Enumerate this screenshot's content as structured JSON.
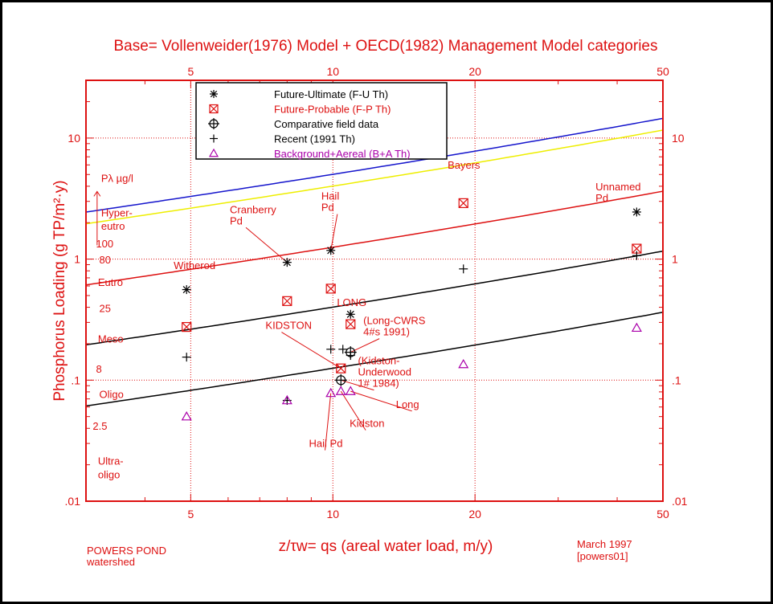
{
  "chart_data": {
    "type": "scatter",
    "title": "Base= Vollenweider(1976) Model + OECD(1982) Management Model categories",
    "ylabel": "Phosphorus Loading (g TP/m²·y)",
    "xlabel": "z/τw= qs (areal water load, m/y)",
    "x_scale": "log",
    "y_scale": "log",
    "xlim": [
      3,
      50
    ],
    "ylim": [
      0.01,
      30
    ],
    "x_ticks_top": [
      "5",
      "10",
      "20",
      "50"
    ],
    "x_ticks_bottom": [
      "5",
      "10",
      "20",
      "50"
    ],
    "y_ticks_left": [
      ".01",
      ".1",
      "1",
      "10"
    ],
    "y_ticks_right": [
      ".01",
      ".1",
      "1",
      "10"
    ],
    "grid": "dotted",
    "legend_position": "top-center",
    "footer_left": [
      "POWERS POND",
      "watershed"
    ],
    "footer_right": [
      "March 1997",
      "[powers01]"
    ],
    "colors": {
      "axes": "#dd1111",
      "text_black": "#000000",
      "text_red": "#dd1111",
      "text_magenta": "#aa00aa",
      "curve_100": "#1515cc",
      "curve_80": "#eeee00",
      "curve_25": "#dd1111",
      "curve_8": "#000000",
      "curve_2_5": "#000000"
    },
    "legend": [
      {
        "label": "Future-Ultimate (F-U Th)",
        "marker": "asterisk",
        "color": "#000000"
      },
      {
        "label": "Future-Probable (F-P Th)",
        "marker": "crossed-box",
        "color": "#dd1111"
      },
      {
        "label": "Comparative field data",
        "marker": "circle-plus",
        "color": "#000000"
      },
      {
        "label": "Recent (1991 Th)",
        "marker": "plus",
        "color": "#000000"
      },
      {
        "label": "Background+Aereal (B+A Th)",
        "marker": "triangle",
        "color": "#aa00aa"
      }
    ],
    "trophic_labels": [
      {
        "text": "Pλ µg/l",
        "x": 3.23,
        "y": 4.35,
        "color": "#dd1111"
      },
      {
        "text": "Hyper-",
        "x": 3.23,
        "y": 2.25,
        "color": "#dd1111"
      },
      {
        "text": "eutro",
        "x": 3.23,
        "y": 1.75,
        "color": "#dd1111"
      },
      {
        "text": "100",
        "x": 3.15,
        "y": 1.25,
        "color": "#dd1111"
      },
      {
        "text": "80",
        "x": 3.2,
        "y": 0.92,
        "color": "#dd1111"
      },
      {
        "text": "Eutro",
        "x": 3.18,
        "y": 0.6,
        "color": "#dd1111"
      },
      {
        "text": "25",
        "x": 3.2,
        "y": 0.365,
        "color": "#dd1111"
      },
      {
        "text": "Meso",
        "x": 3.18,
        "y": 0.205,
        "color": "#dd1111"
      },
      {
        "text": "8",
        "x": 3.15,
        "y": 0.115,
        "color": "#dd1111"
      },
      {
        "text": "Oligo",
        "x": 3.2,
        "y": 0.071,
        "color": "#dd1111"
      },
      {
        "text": "2.5",
        "x": 3.1,
        "y": 0.039,
        "color": "#dd1111"
      },
      {
        "text": "Ultra-",
        "x": 3.18,
        "y": 0.02,
        "color": "#dd1111"
      },
      {
        "text": "oligo",
        "x": 3.18,
        "y": 0.0155,
        "color": "#dd1111"
      }
    ],
    "curves": [
      {
        "level": 100,
        "k": 1.0
      },
      {
        "level": 80,
        "k": 0.8
      },
      {
        "level": 25,
        "k": 0.25
      },
      {
        "level": 8,
        "k": 0.08
      },
      {
        "level": 2.5,
        "k": 0.025
      }
    ],
    "series": [
      {
        "name": "Future-Ultimate (F-U Th)",
        "marker": "asterisk",
        "color": "#000000",
        "points": [
          [
            4.9,
            0.56
          ],
          [
            8.0,
            0.94
          ],
          [
            9.9,
            1.18
          ],
          [
            10.9,
            0.35
          ],
          [
            44.0,
            2.45
          ]
        ]
      },
      {
        "name": "Future-Probable (F-P Th)",
        "marker": "crossed-box",
        "color": "#dd1111",
        "points": [
          [
            4.9,
            0.275
          ],
          [
            8.0,
            0.45
          ],
          [
            9.9,
            0.57
          ],
          [
            10.4,
            0.125
          ],
          [
            10.9,
            0.29
          ],
          [
            18.9,
            2.9
          ],
          [
            44.0,
            1.22
          ]
        ]
      },
      {
        "name": "Comparative field data",
        "marker": "circle-plus",
        "color": "#000000",
        "points": [
          [
            10.4,
            0.1
          ],
          [
            10.9,
            0.17
          ]
        ]
      },
      {
        "name": "Recent (1991 Th)",
        "marker": "plus",
        "color": "#000000",
        "points": [
          [
            4.9,
            0.155
          ],
          [
            8.0,
            0.068
          ],
          [
            9.9,
            0.18
          ],
          [
            10.5,
            0.18
          ],
          [
            10.9,
            0.16
          ],
          [
            18.9,
            0.83
          ],
          [
            44.0,
            1.07
          ]
        ]
      },
      {
        "name": "Background+Aereal (B+A Th)",
        "marker": "triangle",
        "color": "#aa00aa",
        "points": [
          [
            4.9,
            0.05
          ],
          [
            8.0,
            0.068
          ],
          [
            9.9,
            0.078
          ],
          [
            10.4,
            0.081
          ],
          [
            10.9,
            0.081
          ],
          [
            18.9,
            0.135
          ],
          [
            44.0,
            0.27
          ]
        ]
      }
    ],
    "annotations": [
      {
        "lines": [
          "Witherod"
        ],
        "x": 4.6,
        "y": 0.83
      },
      {
        "lines": [
          "Cranberry",
          "Pd"
        ],
        "x": 6.05,
        "y": 2.4,
        "arrow_to": [
          8.0,
          0.94
        ]
      },
      {
        "lines": [
          "Hail",
          "Pd"
        ],
        "x": 9.45,
        "y": 3.1,
        "arrow_to": [
          9.9,
          1.18
        ]
      },
      {
        "lines": [
          "Bayers"
        ],
        "x": 17.5,
        "y": 5.6
      },
      {
        "lines": [
          "Unnamed",
          "Pd"
        ],
        "x": 36.0,
        "y": 3.7
      },
      {
        "lines": [
          "LONG"
        ],
        "x": 10.2,
        "y": 0.41
      },
      {
        "lines": [
          "KIDSTON"
        ],
        "x": 7.2,
        "y": 0.265,
        "arrow_to": [
          10.4,
          0.125
        ]
      },
      {
        "lines": [
          "(Long-CWRS",
          "4#s 1991)"
        ],
        "x": 11.6,
        "y": 0.29,
        "arrow_to": [
          10.9,
          0.17
        ]
      },
      {
        "lines": [
          "(Kidston-",
          "Underwood",
          "1#  1984)"
        ],
        "x": 11.3,
        "y": 0.135,
        "arrow_to": [
          10.4,
          0.1
        ]
      },
      {
        "lines": [
          "Long"
        ],
        "x": 13.6,
        "y": 0.059,
        "arrow_to": [
          10.9,
          0.081
        ]
      },
      {
        "lines": [
          "Kidston"
        ],
        "x": 10.85,
        "y": 0.041,
        "arrow_to": [
          10.4,
          0.081
        ]
      },
      {
        "lines": [
          "Hail Pd"
        ],
        "x": 8.9,
        "y": 0.028,
        "arrow_to": [
          9.9,
          0.078
        ]
      }
    ]
  }
}
